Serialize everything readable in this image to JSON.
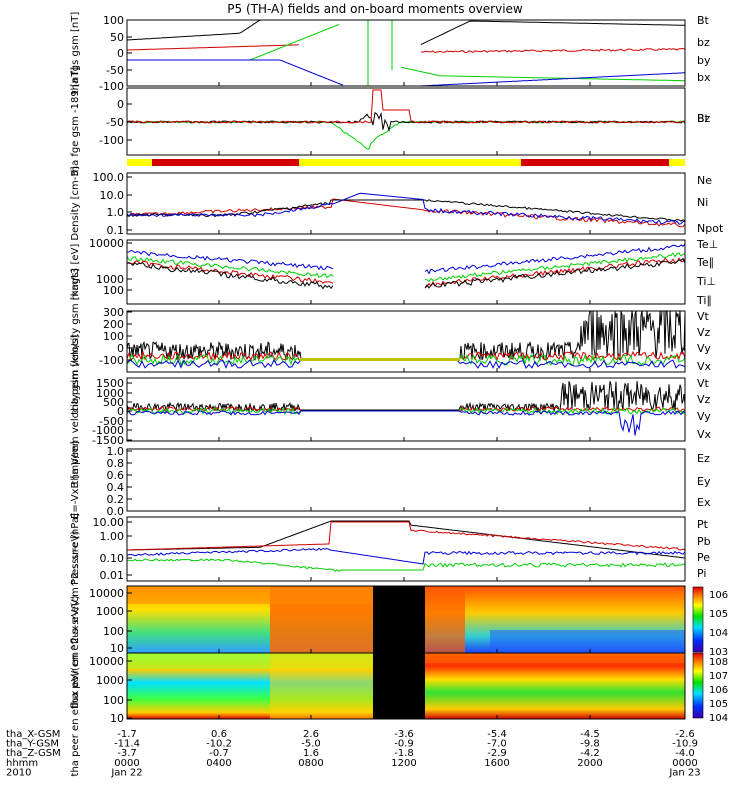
{
  "title": "P5 (TH-A) fields and on-board moments overview",
  "colors": {
    "black": "#000000",
    "red": "#d40000",
    "green": "#00d000",
    "blue": "#0000d8",
    "yellow": "#ffff00"
  },
  "chart_data": [
    {
      "type": "line",
      "ylabel": "tha fgs gsm [nT]",
      "yticks": [
        "100",
        "50",
        "0",
        "-50",
        "-100"
      ],
      "ylim": [
        -100,
        100
      ],
      "legend": [
        {
          "name": "Bt",
          "color": "black"
        },
        {
          "name": "bz",
          "color": "red"
        },
        {
          "name": "by",
          "color": "green"
        },
        {
          "name": "bx",
          "color": "blue"
        }
      ]
    },
    {
      "type": "line",
      "ylabel": "tha fge gsm -189 [nT]",
      "yticks": [
        "0",
        "-50",
        "-100"
      ],
      "ylim": [
        -120,
        40
      ],
      "legend": [
        {
          "name": "Bt",
          "color": "red"
        },
        {
          "name": "Bz",
          "color": "green"
        }
      ]
    },
    {
      "type": "line",
      "ylabel": "Density [cm-3]",
      "log": true,
      "yticks": [
        "100.0",
        "10.0",
        "1.0",
        "0.1"
      ],
      "legend": [
        {
          "name": "Ne",
          "color": "red"
        },
        {
          "name": "Ni",
          "color": "black"
        },
        {
          "name": "Npot",
          "color": "blue"
        }
      ]
    },
    {
      "type": "line",
      "ylabel": "magt3 [eV]",
      "log": true,
      "yticks": [
        "10000",
        "1000",
        "100"
      ],
      "legend": [
        {
          "name": "Te⊥",
          "color": "red"
        },
        {
          "name": "Te∥",
          "color": "black"
        },
        {
          "name": "Ti⊥",
          "color": "blue"
        },
        {
          "name": "Ti∥",
          "color": "green"
        }
      ]
    },
    {
      "type": "line",
      "ylabel": "tha peim velocity gsm [km/s]",
      "yticks": [
        "300",
        "200",
        "100",
        "0",
        "-100"
      ],
      "ylim": [
        -100,
        300
      ],
      "legend": [
        {
          "name": "Vt",
          "color": "black"
        },
        {
          "name": "Vz",
          "color": "red"
        },
        {
          "name": "Vy",
          "color": "green"
        },
        {
          "name": "Vx",
          "color": "blue"
        }
      ]
    },
    {
      "type": "line",
      "ylabel": "tha peem velocity gsm [km/s]",
      "yticks": [
        "1500",
        "1000",
        "500",
        "0",
        "-500",
        "-1000",
        "-1500"
      ],
      "ylim": [
        -1500,
        1500
      ],
      "legend": [
        {
          "name": "Vt",
          "color": "black"
        },
        {
          "name": "Vz",
          "color": "red"
        },
        {
          "name": "Vy",
          "color": "green"
        },
        {
          "name": "Vx",
          "color": "blue"
        }
      ]
    },
    {
      "type": "line",
      "ylabel": "E=-VxB [mV/m]",
      "yticks": [
        "1.0",
        "0.8",
        "0.6",
        "0.4",
        "0.2",
        "0.0"
      ],
      "ylim": [
        0,
        1
      ],
      "legend": [
        {
          "name": "Ez",
          "color": "red"
        },
        {
          "name": "Ey",
          "color": "green"
        },
        {
          "name": "Ex",
          "color": "blue"
        }
      ]
    },
    {
      "type": "line",
      "ylabel": "Pressure [nPa]",
      "log": true,
      "yticks": [
        "10.00",
        "1.00",
        "0.10",
        "0.01"
      ],
      "legend": [
        {
          "name": "Pt",
          "color": "black"
        },
        {
          "name": "Pb",
          "color": "red"
        },
        {
          "name": "Pe",
          "color": "green"
        },
        {
          "name": "Pi",
          "color": "blue"
        }
      ]
    },
    {
      "type": "heatmap",
      "ylabel": "tha peir en eflux eV/(cm^2-s-sr-eV)",
      "yticks": [
        "10000",
        "1000",
        "100",
        "10"
      ],
      "colorbar": [
        "10^6",
        "10^5",
        "10^4",
        "10^3"
      ]
    },
    {
      "type": "heatmap",
      "ylabel": "tha peer en eflux eV/(cm^2-s-sr-eV)",
      "yticks": [
        "10000",
        "1000",
        "100",
        "10"
      ],
      "colorbar": [
        "10^8",
        "10^7",
        "10^6",
        "10^5",
        "10^4"
      ]
    }
  ],
  "xaxis": {
    "rows": [
      {
        "label": "tha_X-GSM",
        "values": [
          "-1.7",
          "0.6",
          "2.6",
          "-3.6",
          "-5.4",
          "-4.5",
          "-2.6"
        ]
      },
      {
        "label": "tha_Y-GSM",
        "values": [
          "-11.4",
          "-10.2",
          "-5.0",
          "-0.9",
          "-7.0",
          "-9.8",
          "-10.9"
        ]
      },
      {
        "label": "tha_Z-GSM",
        "values": [
          "-3.7",
          "-0.7",
          "1.6",
          "-1.8",
          "-2.9",
          "-4.2",
          "-4.0"
        ]
      },
      {
        "label": "hhmm",
        "values": [
          "0000",
          "0400",
          "0800",
          "1200",
          "1600",
          "2000",
          "0000"
        ]
      },
      {
        "label": "2010",
        "values": [
          "Jan 22",
          "",
          "",
          "",
          "",
          "",
          "Jan 23"
        ]
      }
    ]
  }
}
